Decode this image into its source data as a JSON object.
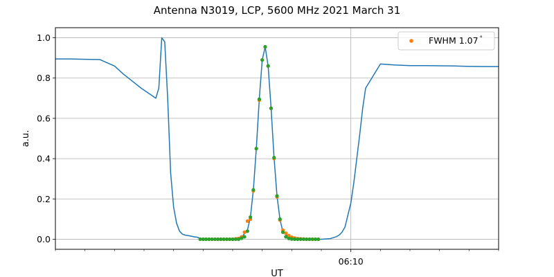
{
  "chart_data": {
    "type": "line",
    "title": "Antenna N3019, LCP, 5600 MHz 2021 March 31",
    "xlabel": "UT",
    "ylabel": "a.u.",
    "x_unit": "minutes",
    "xlim": [
      0,
      15
    ],
    "ylim": [
      -0.05,
      1.05
    ],
    "yticks": [
      0.0,
      0.2,
      0.4,
      0.6,
      0.8,
      1.0
    ],
    "ytick_labels": [
      "0.0",
      "0.2",
      "0.4",
      "0.6",
      "0.8",
      "1.0"
    ],
    "xticks_labeled": [
      {
        "x": 10.0,
        "label": "06:10"
      }
    ],
    "xticks_minor": [
      0,
      1,
      2,
      3,
      4,
      5,
      6,
      7,
      8,
      9,
      11,
      12,
      13,
      14,
      15
    ],
    "grid": true,
    "legend": {
      "placement": "top-right",
      "entries": [
        "FWHM 1.07$^\\circ$"
      ],
      "display": [
        "FWHM 1.07",
        "°"
      ]
    },
    "colors": {
      "line": "#1f77b4",
      "fit": "#ff7f0e",
      "points": "#2ca02c",
      "grid": "#b0b0b0"
    },
    "series": [
      {
        "style": "line",
        "color": "#1f77b4",
        "x": [
          0,
          0.5,
          1.0,
          1.5,
          2.0,
          2.3,
          2.6,
          2.9,
          3.2,
          3.4,
          3.5,
          3.6,
          3.7,
          3.8,
          3.9,
          4.0,
          4.1,
          4.2,
          4.3,
          4.4,
          4.5,
          4.6,
          4.7,
          4.8,
          4.9,
          5.0,
          5.5,
          6.0,
          6.3,
          6.5,
          6.6,
          6.7,
          6.8,
          6.9,
          7.0,
          7.1,
          7.2,
          7.3,
          7.4,
          7.5,
          7.6,
          7.7,
          8.0,
          8.5,
          9.0,
          9.3,
          9.5,
          9.6,
          9.7,
          9.8,
          9.9,
          10.0,
          10.1,
          10.2,
          10.3,
          10.4,
          10.5,
          11.0,
          11.5,
          12.0,
          12.5,
          13.0,
          13.5,
          14.0,
          14.5,
          15.0
        ],
        "y": [
          0.895,
          0.895,
          0.893,
          0.892,
          0.86,
          0.82,
          0.785,
          0.75,
          0.72,
          0.7,
          0.75,
          1.0,
          0.98,
          0.7,
          0.33,
          0.16,
          0.08,
          0.04,
          0.025,
          0.02,
          0.018,
          0.015,
          0.012,
          0.01,
          0.005,
          0.0,
          0.0,
          0.003,
          0.01,
          0.045,
          0.11,
          0.245,
          0.45,
          0.695,
          0.89,
          0.955,
          0.86,
          0.65,
          0.405,
          0.215,
          0.1,
          0.035,
          0.002,
          0.0,
          0.0,
          0.003,
          0.012,
          0.02,
          0.035,
          0.06,
          0.12,
          0.18,
          0.28,
          0.4,
          0.52,
          0.65,
          0.75,
          0.87,
          0.865,
          0.862,
          0.862,
          0.861,
          0.86,
          0.858,
          0.857,
          0.857
        ]
      },
      {
        "style": "markers",
        "color": "#ff7f0e",
        "name": "FWHM 1.07$^\\circ$",
        "x": [
          5.0,
          5.1,
          5.2,
          5.3,
          5.4,
          5.5,
          5.6,
          5.7,
          5.8,
          5.9,
          6.0,
          6.1,
          6.2,
          6.3,
          6.4,
          6.5,
          6.6,
          6.7,
          6.8,
          6.9,
          7.0,
          7.1,
          7.2,
          7.3,
          7.4,
          7.5,
          7.6,
          7.7,
          7.8,
          7.9,
          8.0,
          8.1,
          8.2,
          8.3,
          8.4,
          8.5,
          8.6,
          8.7,
          8.8,
          8.9
        ],
        "y": [
          0.0,
          0.0,
          0.0,
          0.0,
          0.0,
          0.0,
          0.0,
          0.0,
          0.0,
          0.0,
          0.0,
          0.002,
          0.004,
          0.012,
          0.035,
          0.09,
          0.1,
          0.24,
          0.45,
          0.69,
          0.89,
          0.955,
          0.86,
          0.65,
          0.4,
          0.21,
          0.095,
          0.045,
          0.03,
          0.018,
          0.01,
          0.006,
          0.003,
          0.002,
          0.001,
          0.0,
          0.0,
          0.0,
          0.0,
          0.0
        ]
      },
      {
        "style": "markers",
        "color": "#2ca02c",
        "x": [
          4.9,
          5.0,
          5.1,
          5.2,
          5.3,
          5.4,
          5.5,
          5.6,
          5.7,
          5.8,
          5.9,
          6.0,
          6.1,
          6.2,
          6.3,
          6.4,
          6.5,
          6.6,
          6.7,
          6.8,
          6.9,
          7.0,
          7.1,
          7.2,
          7.3,
          7.4,
          7.5,
          7.6,
          7.7,
          7.8,
          7.9,
          8.0,
          8.1,
          8.2,
          8.3,
          8.4,
          8.5,
          8.6,
          8.7,
          8.8,
          8.9
        ],
        "y": [
          0.0,
          0.0,
          0.0,
          0.0,
          0.0,
          0.0,
          0.0,
          0.0,
          0.0,
          0.0,
          0.0,
          0.0,
          0.0,
          0.0,
          0.005,
          0.012,
          0.04,
          0.11,
          0.245,
          0.45,
          0.695,
          0.89,
          0.955,
          0.86,
          0.65,
          0.405,
          0.215,
          0.1,
          0.035,
          0.012,
          0.004,
          0.001,
          0.0,
          0.0,
          0.0,
          0.0,
          0.0,
          0.0,
          0.0,
          0.0,
          0.0
        ]
      }
    ]
  }
}
